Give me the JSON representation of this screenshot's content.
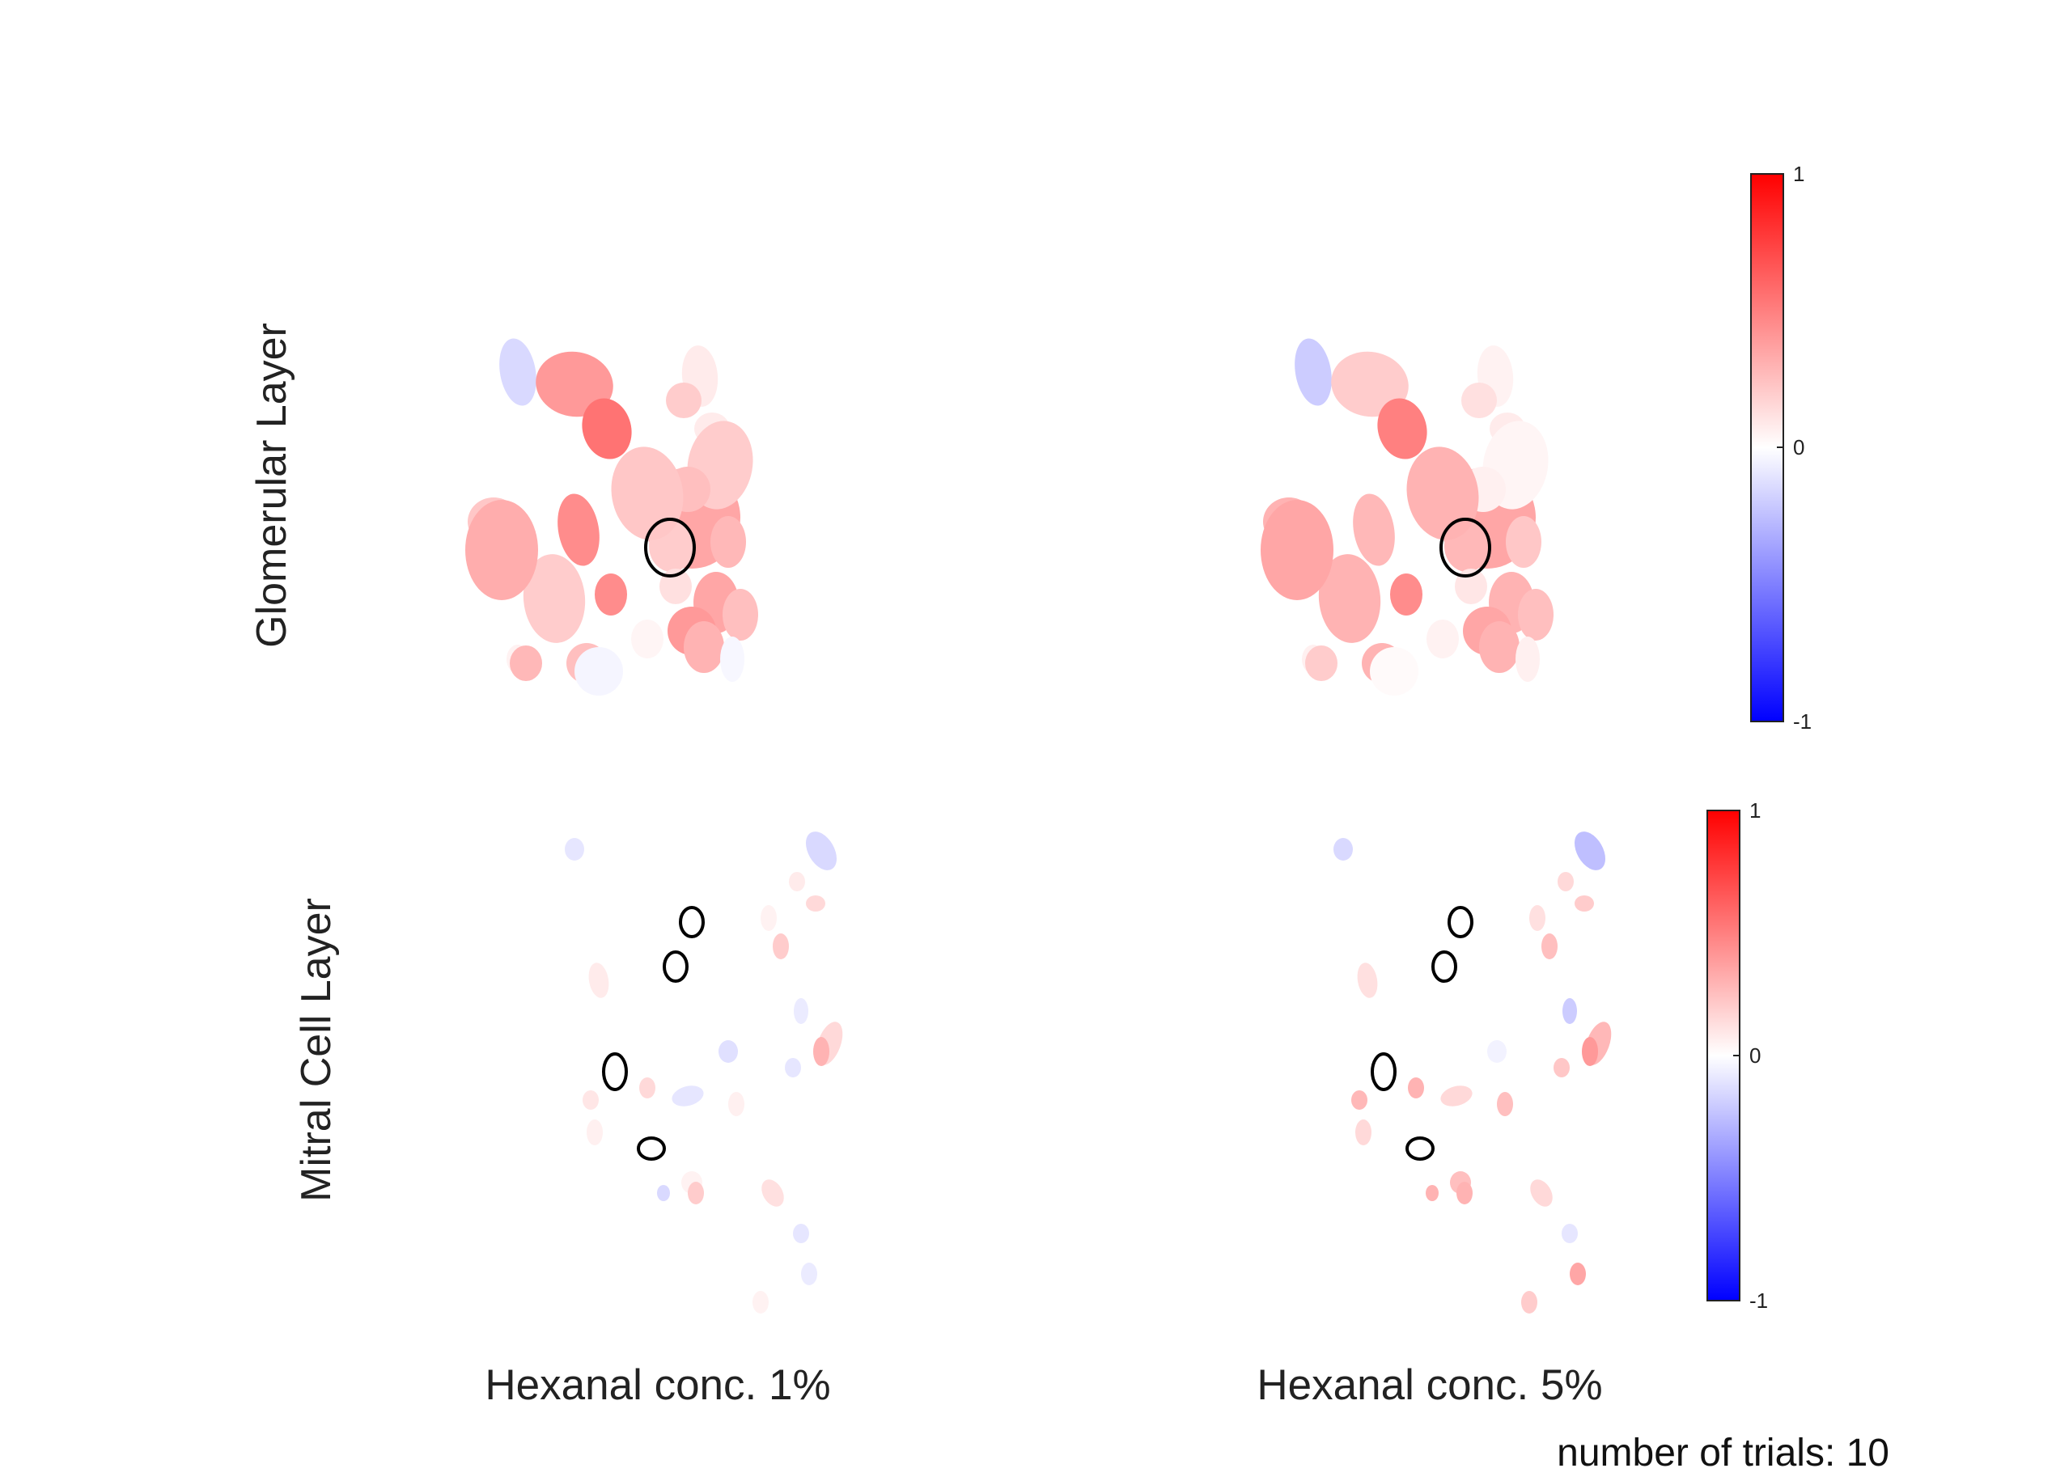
{
  "row_labels": [
    "Glomerular Layer",
    "Mitral Cell Layer"
  ],
  "column_labels": [
    "Hexanal conc. 1%",
    "Hexanal conc. 5%"
  ],
  "footer": "number of trials: 10",
  "colorbar": {
    "min": -1,
    "max": 1,
    "ticks": [
      "1",
      "0",
      "-1"
    ],
    "colors": {
      "low": "#0000ff",
      "mid": "#ffffff",
      "high": "#ff0000"
    }
  },
  "maps": {
    "glomerular": {
      "conc_1": [
        0.35,
        0.08,
        -0.15,
        0.2,
        0.4,
        0.55,
        0.08,
        0.2,
        0.25,
        0.45,
        0.2,
        0.28,
        0.22,
        0.35,
        0.2,
        0.45,
        0.12,
        0.25,
        0.22,
        0.32,
        0.25,
        0.4,
        0.3,
        -0.03,
        0.04,
        0.05,
        0.28,
        -0.04
      ],
      "conc_5": [
        0.35,
        0.05,
        -0.2,
        0.12,
        0.2,
        0.5,
        0.08,
        0.04,
        0.06,
        0.28,
        0.28,
        0.22,
        0.3,
        0.3,
        0.3,
        0.45,
        0.1,
        0.25,
        0.3,
        0.35,
        0.3,
        0.35,
        0.3,
        0.06,
        0.05,
        0.06,
        0.2,
        0.02
      ]
    },
    "mitral": {
      "conc_1": [
        -0.1,
        -0.15,
        0.08,
        0.15,
        0.05,
        0.2,
        0.08,
        -0.08,
        0.15,
        0.3,
        -0.1,
        0.15,
        -0.1,
        -0.12,
        0.06,
        -0.15,
        0.05,
        0.06,
        0.1,
        0.2,
        -0.1,
        -0.08,
        0.05,
        0.12
      ],
      "conc_5": [
        -0.15,
        -0.25,
        0.15,
        0.2,
        0.12,
        0.25,
        0.12,
        -0.2,
        0.28,
        0.4,
        0.22,
        0.3,
        0.15,
        -0.05,
        0.15,
        0.3,
        0.25,
        0.25,
        0.28,
        0.3,
        -0.1,
        0.35,
        0.2,
        0.15
      ]
    }
  }
}
